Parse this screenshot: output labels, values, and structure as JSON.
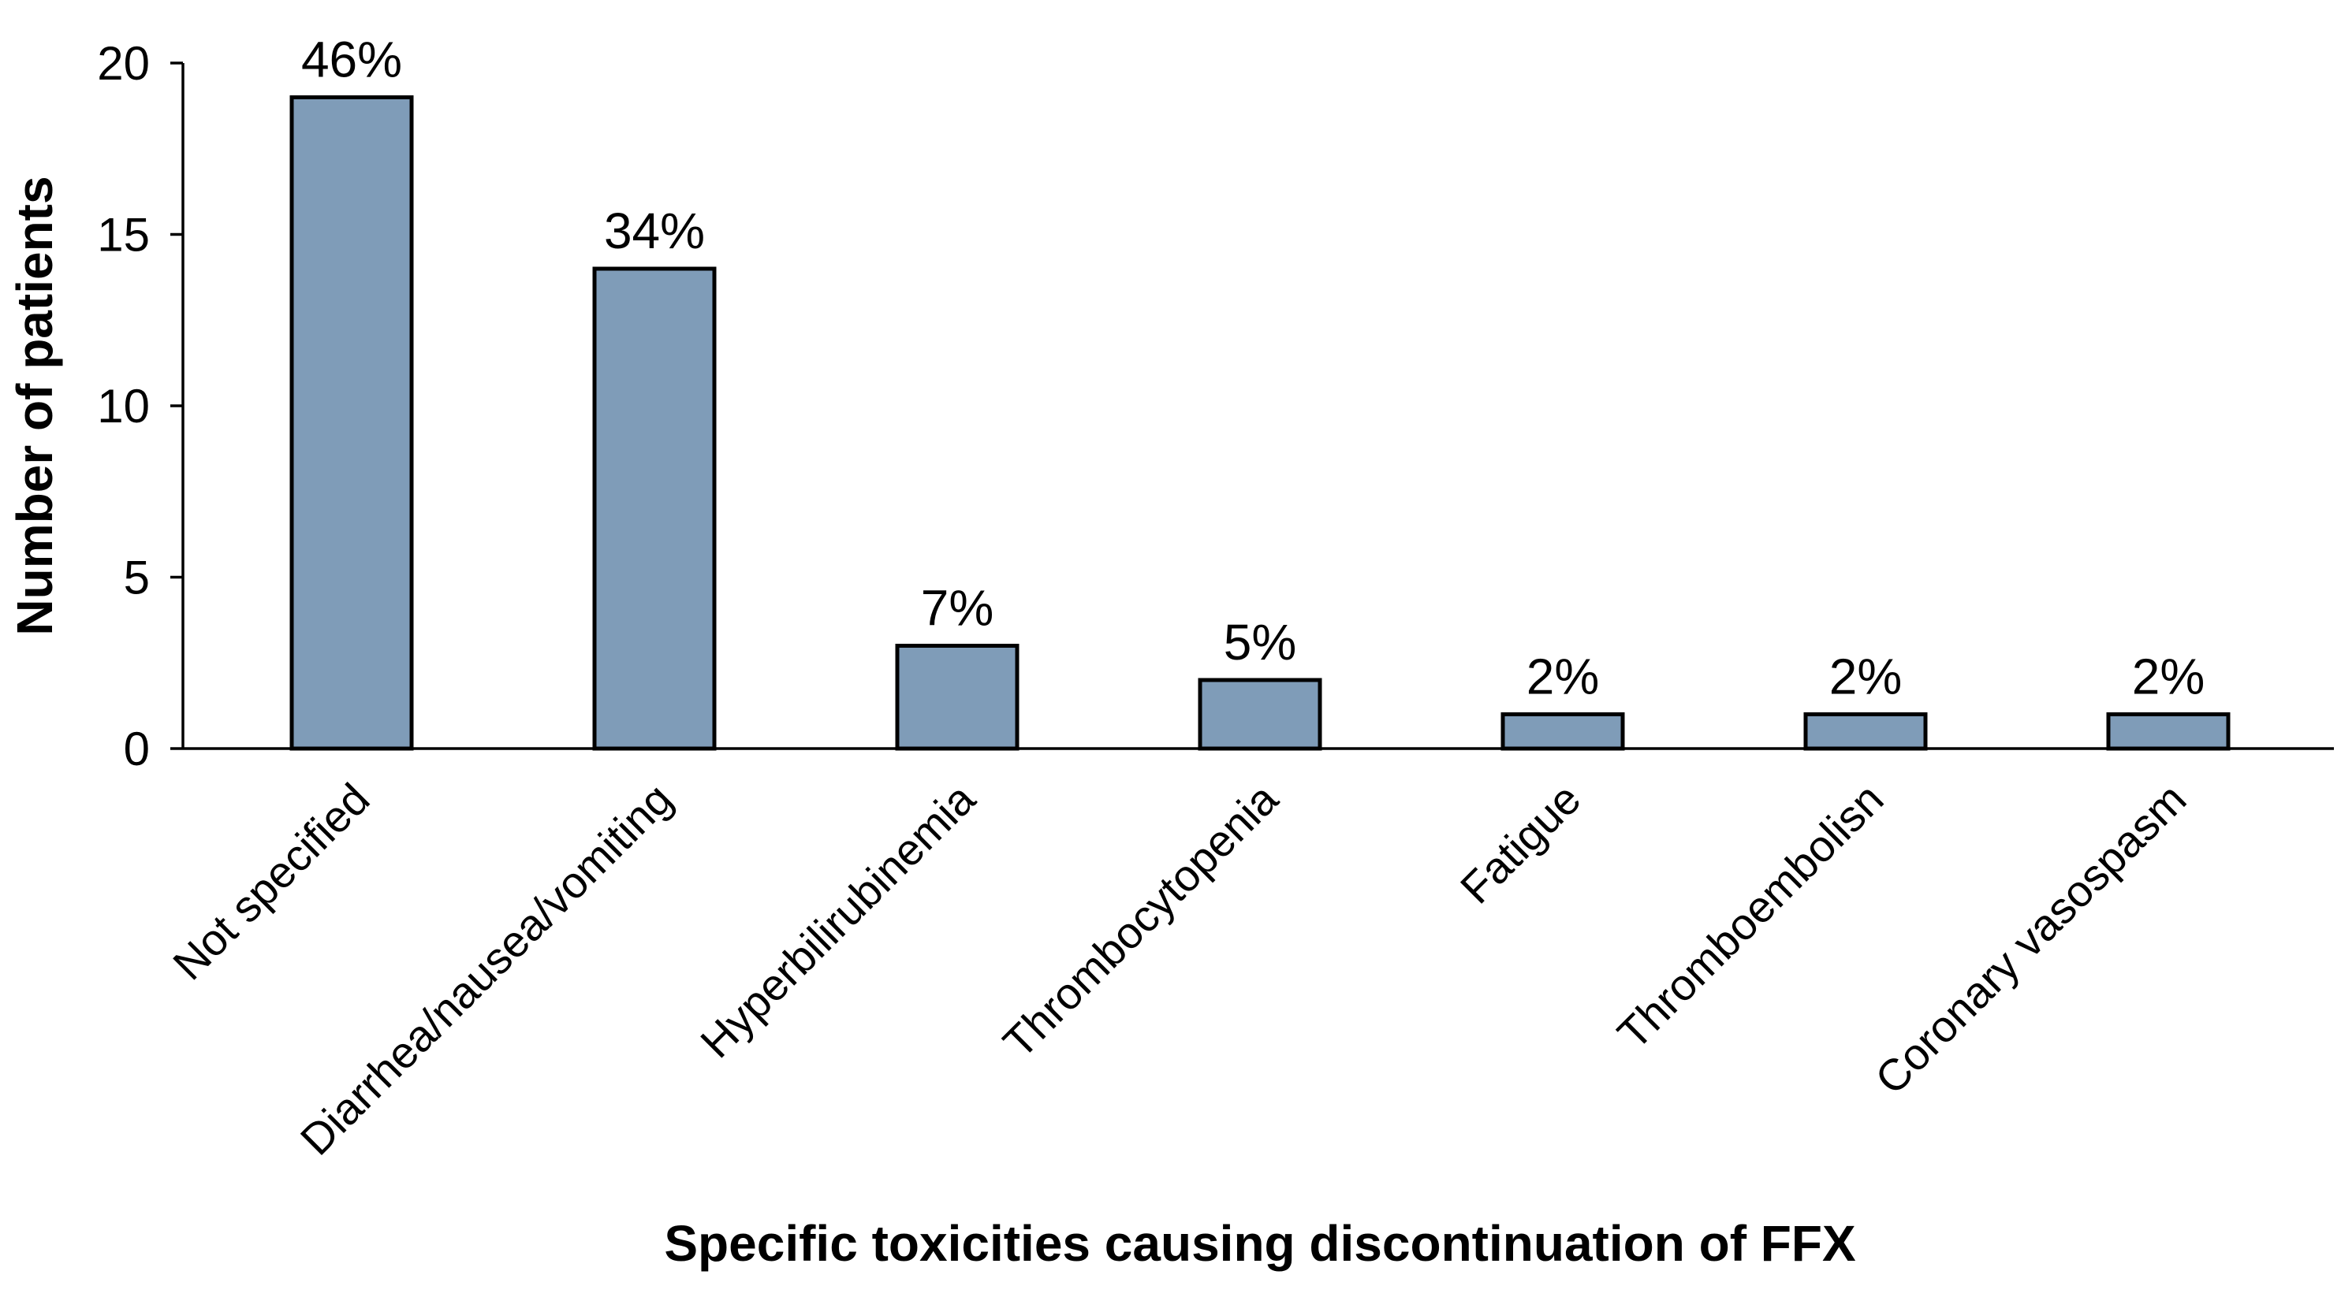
{
  "chart_data": {
    "type": "bar",
    "title": "",
    "xlabel": "Specific toxicities causing discontinuation of FFX",
    "ylabel": "Number of patients",
    "ylim": [
      0,
      20
    ],
    "yticks": [
      0,
      5,
      10,
      15,
      20
    ],
    "grid": false,
    "legend": "none",
    "bar_color": "#7f9cb8",
    "categories": [
      "Not specified",
      "Diarrhea/nausea/vomiting",
      "Hyperbilirubinemia",
      "Thrombocytopenia",
      "Fatigue",
      "Thromboembolisn",
      "Coronary vasospasm"
    ],
    "values": [
      19,
      14,
      3,
      2,
      1,
      1,
      1
    ],
    "data_labels": [
      "46%",
      "34%",
      "7%",
      "5%",
      "2%",
      "2%",
      "2%"
    ]
  }
}
